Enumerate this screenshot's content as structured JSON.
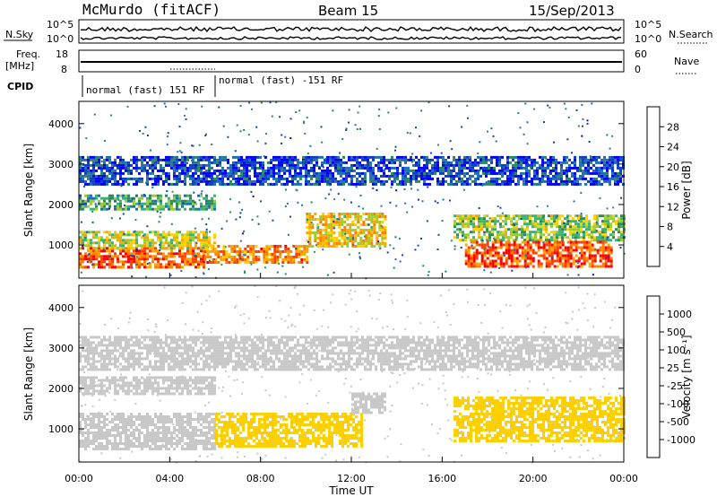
{
  "header": {
    "station": "McMurdo (fitACF)",
    "beam": "Beam 15",
    "date": "15/Sep/2013"
  },
  "panels": {
    "noise": {
      "left_label": "N.Sky",
      "right_label": "N.Search",
      "left_ticks": [
        "10^5",
        "10^0"
      ],
      "right_ticks": [
        "10^5",
        "10^0"
      ]
    },
    "freq": {
      "left_label_line1": "Freq.",
      "left_label_line2": "[MHz]",
      "left_ticks": [
        "18",
        "8"
      ],
      "right_label": "Nave",
      "right_ticks": [
        "60",
        "0"
      ]
    },
    "cpid": {
      "label": "CPID",
      "segments": [
        {
          "text": "normal (fast) 151 RF",
          "start_hour": 0
        },
        {
          "text": "normal (fast) -151 RF",
          "start_hour": 6
        }
      ]
    }
  },
  "colorbars": {
    "power": {
      "title": "Power [dB]",
      "ticks": [
        "28",
        "24",
        "20",
        "16",
        "12",
        "8",
        "4"
      ],
      "colors": [
        "#ff0000",
        "#ff4000",
        "#ff7f00",
        "#ffa500",
        "#ffd000",
        "#9acd32",
        "#3cb371",
        "#2e8b57",
        "#1e6fb4",
        "#1040c0",
        "#0000ff"
      ]
    },
    "velocity": {
      "title": "Velocity [m s⁻¹]",
      "ticks": [
        "1000",
        "500",
        "100",
        "25",
        "-25",
        "-100",
        "-500",
        "-1000"
      ],
      "colors": [
        "#2030c0",
        "#2060a0",
        "#2e8b57",
        "#32cd32",
        "#7fd36a",
        "#c8c8c8",
        "#ffd000",
        "#ffa500",
        "#ff7f00",
        "#ff3000",
        "#ff0000"
      ]
    }
  },
  "chart_data": [
    {
      "type": "heatmap",
      "name": "power",
      "xlabel": "Time UT",
      "ylabel": "Slant Range [km]",
      "xlim": [
        0,
        24
      ],
      "ylim": [
        180,
        4550
      ],
      "yticks": [
        1000,
        2000,
        3000,
        4000
      ],
      "xticks": [
        "00:00",
        "04:00",
        "08:00",
        "12:00",
        "16:00",
        "20:00",
        "00:00"
      ],
      "bands": [
        {
          "t0": 0,
          "t1": 5.5,
          "r0": 450,
          "r1": 950,
          "level": 26
        },
        {
          "t0": 5.5,
          "t1": 10,
          "r0": 600,
          "r1": 1000,
          "level": 24
        },
        {
          "t0": 0,
          "t1": 6,
          "r0": 950,
          "r1": 1350,
          "level": 18
        },
        {
          "t0": 0,
          "t1": 6,
          "r0": 1900,
          "r1": 2250,
          "level": 12
        },
        {
          "t0": 10,
          "t1": 13.5,
          "r0": 1000,
          "r1": 1800,
          "level": 20
        },
        {
          "t0": 16.5,
          "t1": 24,
          "r0": 1100,
          "r1": 1750,
          "level": 16
        },
        {
          "t0": 17,
          "t1": 23.5,
          "r0": 500,
          "r1": 1100,
          "level": 27
        },
        {
          "t0": 0,
          "t1": 24,
          "r0": 2500,
          "r1": 3200,
          "level": 6
        }
      ]
    },
    {
      "type": "heatmap",
      "name": "velocity",
      "xlabel": "Time UT",
      "ylabel": "Slant Range [km]",
      "xlim": [
        0,
        24
      ],
      "ylim": [
        180,
        4550
      ],
      "yticks": [
        1000,
        2000,
        3000,
        4000
      ],
      "xticks": [
        "00:00",
        "04:00",
        "08:00",
        "12:00",
        "16:00",
        "20:00",
        "00:00"
      ],
      "bands": [
        {
          "t0": 0,
          "t1": 6,
          "r0": 500,
          "r1": 1400,
          "level": -100
        },
        {
          "t0": 6,
          "t1": 12.5,
          "r0": 600,
          "r1": 1400,
          "level": -150
        },
        {
          "t0": 0,
          "t1": 6,
          "r0": 1900,
          "r1": 2300,
          "level": 0
        },
        {
          "t0": 16.5,
          "t1": 24,
          "r0": 700,
          "r1": 1800,
          "level": -200
        },
        {
          "t0": 12,
          "t1": 13.5,
          "r0": 1400,
          "r1": 1900,
          "level": 50
        },
        {
          "t0": 0,
          "t1": 24,
          "r0": 2500,
          "r1": 3300,
          "level": 0
        }
      ]
    }
  ]
}
